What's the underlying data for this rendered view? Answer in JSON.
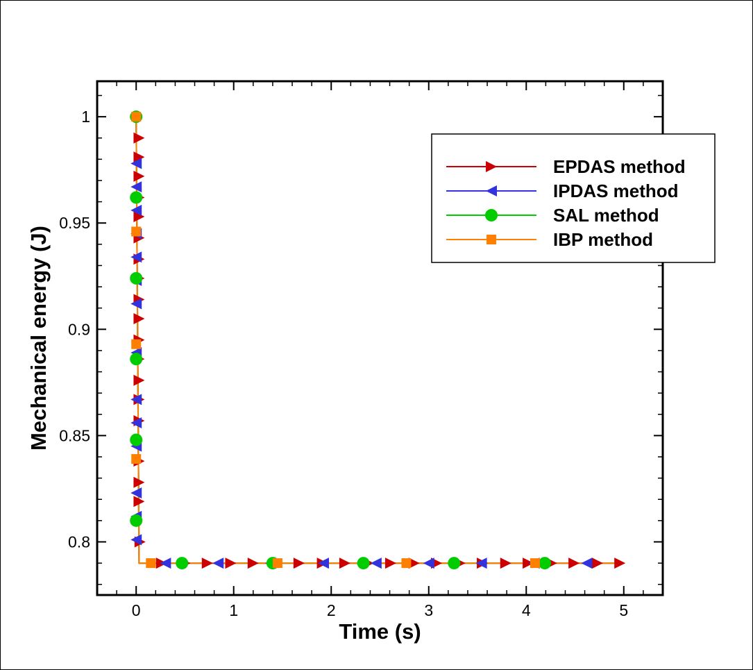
{
  "chart_data": {
    "type": "line",
    "title": "",
    "xlabel": "Time (s)",
    "ylabel": "Mechanical energy (J)",
    "xlim": [
      -0.4,
      5.4
    ],
    "ylim": [
      0.775,
      1.0167
    ],
    "x_ticks": [
      0,
      1,
      2,
      3,
      4,
      5
    ],
    "x_tick_labels": [
      "0",
      "1",
      "2",
      "3",
      "4",
      "5"
    ],
    "y_ticks": [
      0.8,
      0.85,
      0.9,
      0.95,
      1.0
    ],
    "y_tick_labels": [
      "0.8",
      "0.85",
      "0.9",
      "0.95",
      "1"
    ],
    "grid": false,
    "legend_position": "top-right",
    "series": [
      {
        "name": "EPDAS method",
        "color": "#cc0000",
        "marker": "triangle-right",
        "x": [
          0.03,
          0.03,
          0.03,
          0.03,
          0.03,
          0.03,
          0.03,
          0.03,
          0.03,
          0.03,
          0.03,
          0.03,
          0.03,
          0.03,
          0.03,
          0.03,
          0.03,
          0.03,
          0.04,
          0.26,
          0.5,
          0.73,
          0.97,
          1.2,
          1.44,
          1.67,
          1.91,
          2.14,
          2.38,
          2.61,
          2.85,
          3.08,
          3.32,
          3.55,
          3.79,
          4.02,
          4.26,
          4.49,
          4.73,
          4.96
        ],
        "y": [
          0.99,
          0.981,
          0.972,
          0.962,
          0.953,
          0.943,
          0.933,
          0.924,
          0.914,
          0.905,
          0.895,
          0.886,
          0.876,
          0.867,
          0.857,
          0.838,
          0.828,
          0.819,
          0.8,
          0.79,
          0.79,
          0.79,
          0.79,
          0.79,
          0.79,
          0.79,
          0.79,
          0.79,
          0.79,
          0.79,
          0.79,
          0.79,
          0.79,
          0.79,
          0.79,
          0.79,
          0.79,
          0.79,
          0.79,
          0.79
        ]
      },
      {
        "name": "IPDAS method",
        "color": "#3333dd",
        "marker": "triangle-left",
        "x": [
          0.0,
          0.0,
          0.0,
          0.0,
          0.0,
          0.0,
          0.0,
          0.0,
          0.0,
          0.0,
          0.0,
          0.0,
          0.0,
          0.0,
          0.3,
          0.84,
          1.38,
          1.92,
          2.46,
          3.0,
          3.54,
          4.08,
          4.62
        ],
        "y": [
          0.978,
          0.967,
          0.956,
          0.945,
          0.934,
          0.923,
          0.912,
          0.889,
          0.867,
          0.856,
          0.845,
          0.823,
          0.812,
          0.801,
          0.79,
          0.79,
          0.79,
          0.79,
          0.79,
          0.79,
          0.79,
          0.79,
          0.79
        ]
      },
      {
        "name": "SAL method",
        "color": "#00cc00",
        "marker": "circle",
        "x": [
          0.0,
          0.0,
          0.0,
          0.0,
          0.0,
          0.0,
          0.47,
          1.4,
          2.33,
          3.26,
          4.19
        ],
        "y": [
          1.0,
          0.962,
          0.924,
          0.886,
          0.848,
          0.81,
          0.79,
          0.79,
          0.79,
          0.79,
          0.79
        ]
      },
      {
        "name": "IBP method",
        "color": "#ff7f00",
        "marker": "square",
        "x": [
          0.0,
          0.0,
          0.0,
          0.0,
          0.15,
          1.45,
          2.77,
          4.09
        ],
        "y": [
          1.0,
          0.946,
          0.893,
          0.839,
          0.79,
          0.79,
          0.79,
          0.79
        ]
      }
    ],
    "line_series": {
      "name": "IBP method",
      "x": [
        0.0,
        0.03,
        5.0
      ],
      "y": [
        1.0,
        0.79,
        0.79
      ]
    }
  }
}
